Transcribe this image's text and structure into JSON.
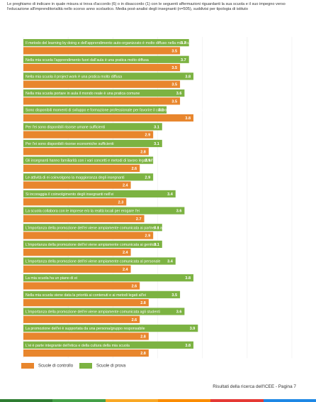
{
  "intro_text": "Le preghiamo di indicare in quale misura si trova d'accordo (6) o in disaccordo (1) con le seguenti affermazioni riguardanti la sua scuola e il suo impegno verso l'educazione all'imprenditorialità nello scorso anno scolastico. Media post-analisi degli insegnanti (n=505), suddivisi per tipologia di istituto",
  "footer_text": "Risultati della ricerca dell'ICEE  -  Pagina 7",
  "colors": {
    "prova": "#7cb342",
    "controllo": "#e8862d",
    "bar_text": "#ffffff",
    "footer_strip": [
      "#2e7d32",
      "#43a047",
      "#f9a825",
      "#fb8c00",
      "#e53935",
      "#1e88e5"
    ]
  },
  "chart_data": {
    "type": "bar",
    "orientation": "horizontal",
    "xlim": [
      0,
      6
    ],
    "legend": [
      {
        "name": "Scuole di controllo",
        "color": "#e8862d"
      },
      {
        "name": "Scuole di prova",
        "color": "#7cb342"
      }
    ],
    "categories": [
      "Il metodo del learning by doing e dell'apprendimento auto-organizzato è molto diffuso nella mia scuola",
      "Nella mia scuola l'apprendimento fuori dall'aula è una pratica molto diffusa",
      "Nella mia scuola il project work è una pratica molto diffusa",
      "Nella mia scuola portare in aula il mondo reale è una pratica comune",
      "Sono disponibili momenti di sviluppo e formazione professionale per favorire il coinvolgimento degli insegnanti nell'ei",
      "Per l'ei sono disponibili risorse umane sufficienti",
      "Per l'ei sono disponibili risorse economiche sufficienti",
      "Gli insegnanti hanno familiarità con i vari concetti e metodi di lavoro legati all'ei",
      "Le attività di ei coinvolgono la maggioranza degli insegnanti",
      "Si incoraggia il coinvolgimento degli insegnanti nell'ei",
      "La scuola collabora con le imprese e/o la realtà locali per erogare l'ei",
      "L'importanza della promozione dell'ei viene ampiamente comunicata ai partner e alla comunità locale",
      "L'importanza della promozione dell'ei viene ampiamente comunicata ai genitori",
      "L'importanza della promozione dell'ei viene ampiamente comunicata al personale",
      "La mia scuola ha un piano di ei",
      "Nella mia scuola viene data la priorità ai contenuti e ai metodi legati all'ei",
      "L'importanza della promozione dell'ei viene ampiamente comunicata agli studenti",
      "La promozione dell'ei è supportata da una persona/gruppo responsabile",
      "L'ei è parte integrante dell'etica e della cultura della mia scuola"
    ],
    "series": [
      {
        "name": "Scuole di prova",
        "values": [
          3.7,
          3.7,
          3.8,
          3.6,
          3.2,
          3.1,
          3.1,
          2.9,
          2.9,
          3.4,
          3.6,
          3.1,
          3.1,
          3.4,
          3.8,
          3.5,
          3.6,
          3.9,
          3.8
        ]
      },
      {
        "name": "Scuole di controllo",
        "values": [
          3.5,
          3.5,
          3.5,
          3.5,
          3.8,
          2.9,
          2.8,
          2.6,
          2.4,
          2.3,
          2.7,
          2.9,
          2.4,
          2.4,
          2.6,
          2.8,
          2.6,
          2.8,
          2.8
        ]
      }
    ]
  }
}
